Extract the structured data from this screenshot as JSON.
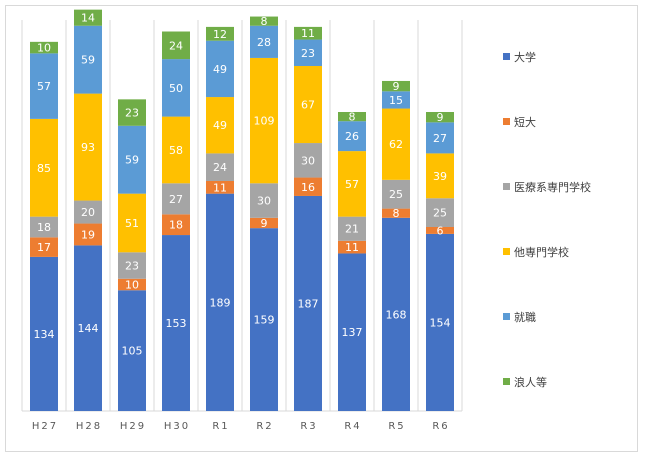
{
  "chart_data": {
    "type": "bar",
    "stacked": true,
    "categories": [
      "H27",
      "H28",
      "H29",
      "H30",
      "R1",
      "R2",
      "R3",
      "R4",
      "R5",
      "R6"
    ],
    "series": [
      {
        "name": "大学",
        "color": "#4472C4",
        "values": [
          134,
          144,
          105,
          153,
          189,
          159,
          187,
          137,
          168,
          154
        ]
      },
      {
        "name": "短大",
        "color": "#ED7D31",
        "values": [
          17,
          19,
          10,
          18,
          11,
          9,
          16,
          11,
          8,
          6
        ]
      },
      {
        "name": "医療系専門学校",
        "color": "#A5A5A5",
        "values": [
          18,
          20,
          23,
          27,
          24,
          30,
          30,
          21,
          25,
          25
        ]
      },
      {
        "name": "他専門学校",
        "color": "#FFC000",
        "values": [
          85,
          93,
          51,
          58,
          49,
          109,
          67,
          57,
          62,
          39
        ]
      },
      {
        "name": "就職",
        "color": "#5B9BD5",
        "values": [
          57,
          59,
          59,
          50,
          49,
          28,
          23,
          26,
          15,
          27
        ]
      },
      {
        "name": "浪人等",
        "color": "#70AD47",
        "values": [
          10,
          14,
          23,
          24,
          12,
          8,
          11,
          8,
          9,
          9
        ]
      }
    ],
    "ylim": [
      0,
      340
    ],
    "grid": "vertical",
    "legend": "right",
    "show_data_labels": true
  }
}
